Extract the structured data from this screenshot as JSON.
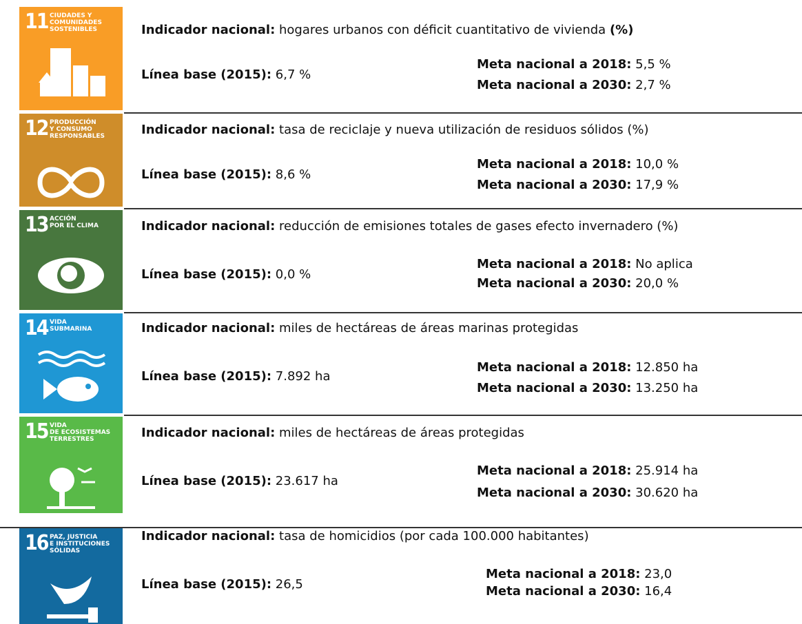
{
  "rows": [
    {
      "goal_number": "11",
      "goal_name": [
        "CIUDADES Y",
        "COMUNIDADES",
        "SOSTENIBLES"
      ],
      "indicator_label": "Indicador nacional:",
      "indicator_text": "hogares urbanos con déficit cuantitativo de vivienda",
      "indicator_unit": "(%)",
      "base_label": "Línea base (2015):",
      "base_value": "6,7 %",
      "meta_2018_label": "Meta nacional a 2018:",
      "meta_2018_value": "5,5 %",
      "meta_2030_label": "Meta nacional a 2030:",
      "meta_2030_value": "2,7 %"
    },
    {
      "goal_number": "12",
      "goal_name": [
        "PRODUCCIÓN",
        "Y CONSUMO",
        "RESPONSABLES"
      ],
      "indicator_label": "Indicador nacional:",
      "indicator_text": "tasa de reciclaje y nueva utilización de residuos sólidos (%)",
      "base_label": "Línea base (2015):",
      "base_value": "8,6 %",
      "meta_2018_label": "Meta nacional a 2018:",
      "meta_2018_value": "10,0 %",
      "meta_2030_label": "Meta nacional a 2030:",
      "meta_2030_value": "17,9 %"
    },
    {
      "goal_number": "13",
      "goal_name": [
        "ACCIÓN",
        "POR EL CLIMA"
      ],
      "indicator_label": "Indicador nacional:",
      "indicator_text": "reducción de emisiones totales de gases efecto invernadero (%)",
      "base_label": "Línea base (2015):",
      "base_value": "0,0 %",
      "meta_2018_label": "Meta nacional a 2018:",
      "meta_2018_value": "No aplica",
      "meta_2030_label": "Meta nacional a 2030:",
      "meta_2030_value": "20,0 %"
    },
    {
      "goal_number": "14",
      "goal_name": [
        "VIDA",
        "SUBMARINA"
      ],
      "indicator_label": "Indicador nacional:",
      "indicator_text": "miles de hectáreas de áreas marinas protegidas",
      "base_label": "Línea base (2015):",
      "base_value": "7.892 ha",
      "meta_2018_label": "Meta nacional a 2018:",
      "meta_2018_value": "12.850 ha",
      "meta_2030_label": "Meta nacional a 2030:",
      "meta_2030_value": "13.250 ha"
    },
    {
      "goal_number": "15",
      "goal_name": [
        "VIDA",
        "DE ECOSISTEMAS",
        "TERRESTRES"
      ],
      "indicator_label": "Indicador nacional:",
      "indicator_text": "miles de hectáreas de áreas protegidas",
      "base_label": "Línea base (2015):",
      "base_value": "23.617 ha",
      "meta_2018_label": "Meta nacional a 2018:",
      "meta_2018_value": "25.914 ha",
      "meta_2030_label": "Meta nacional a 2030:",
      "meta_2030_value": "30.620 ha"
    },
    {
      "goal_number": "16",
      "goal_name": [
        "PAZ, JUSTICIA",
        "E INSTITUCIONES",
        "SÓLIDAS"
      ],
      "indicator_label": "Indicador nacional:",
      "indicator_text": "tasa de homicidios (por cada 100.000 habitantes)",
      "base_label": "Línea base (2015):",
      "base_value": "26,5",
      "meta_2018_label": "Meta nacional a 2018:",
      "meta_2018_value": "23,0",
      "meta_2030_label": "Meta nacional a 2030:",
      "meta_2030_value": "16,4"
    }
  ]
}
